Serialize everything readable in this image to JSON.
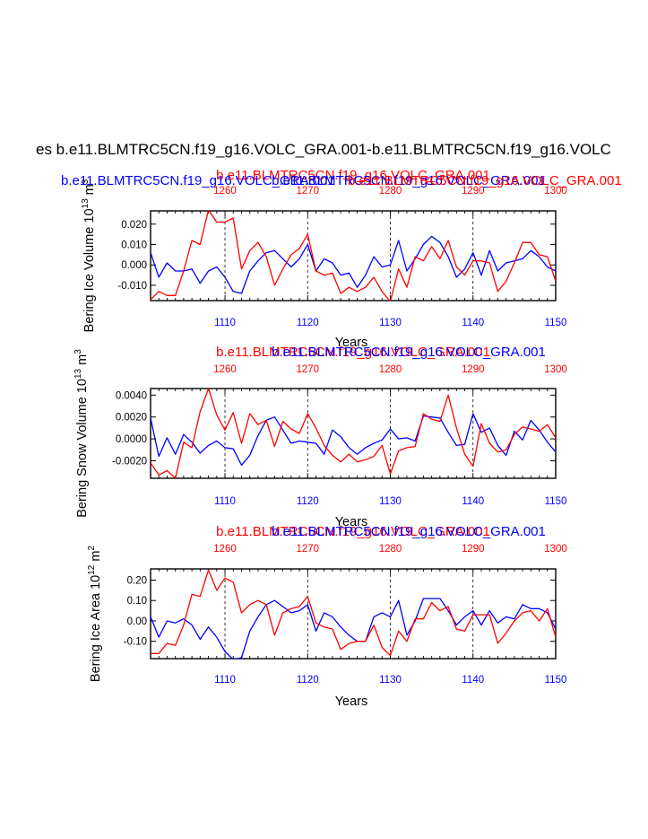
{
  "page_title": "es b.e11.BLMTRC5CN.f19_g16.VOLC_GRA.001-b.e11.BLMTRC5CN.f19_g16.VOLC",
  "series_names": {
    "blue": "b.e11.BLMTRC5CN.f19_g16.VOLC_GRA.001",
    "red": "b.e11.BLMTRC5CN.f19_g16.VOLC_GRA.001"
  },
  "colors": {
    "blue": "#0000ff",
    "red": "#ff0000",
    "axis": "#000000"
  },
  "chart_data": [
    {
      "type": "line",
      "title": "b.e11.BLMTRC5CN.f19_g16.VOLC_GRA.001 / b.e11.BLMTRC5CN.f19_g16.VOLC_GRA.001",
      "subtitle_blue": "b.e11.BLMTRC5CN.f19_g16.VOLC_GRA.001",
      "subtitle_red": "b.e11.BLMTRC5CN.f19_g16.VOLC_GRA.001",
      "ylabel": "Bering Ice Volume 10",
      "yexp": "13",
      "yunit": " m",
      "yunitexp": "3",
      "xlabel": "Years",
      "xlim": [
        1101,
        1150
      ],
      "ylim": [
        -0.0175,
        0.0265
      ],
      "yticks": [
        -0.01,
        0.0,
        0.01,
        0.02
      ],
      "yticklabels": [
        "-0.010",
        "0.000",
        "0.010",
        "0.020"
      ],
      "bottom_ticks": [
        1110,
        1120,
        1130,
        1140,
        1150
      ],
      "top_ticks": [
        1260,
        1270,
        1280,
        1290,
        1300
      ],
      "top_offset": 150,
      "series": [
        {
          "name": "blue",
          "x": [
            1101,
            1102,
            1103,
            1104,
            1105,
            1106,
            1107,
            1108,
            1109,
            1110,
            1111,
            1112,
            1113,
            1114,
            1115,
            1116,
            1117,
            1118,
            1119,
            1120,
            1121,
            1122,
            1123,
            1124,
            1125,
            1126,
            1127,
            1128,
            1129,
            1130,
            1131,
            1132,
            1133,
            1134,
            1135,
            1136,
            1137,
            1138,
            1139,
            1140,
            1141,
            1142,
            1143,
            1144,
            1145,
            1146,
            1147,
            1148,
            1149,
            1150
          ],
          "values": [
            0.006,
            -0.006,
            0.001,
            -0.003,
            -0.003,
            -0.002,
            -0.009,
            -0.003,
            -0.001,
            -0.006,
            -0.013,
            -0.014,
            -0.003,
            0.002,
            0.006,
            0.007,
            0.003,
            -0.001,
            0.003,
            0.01,
            -0.003,
            0.003,
            0.001,
            -0.005,
            -0.004,
            -0.011,
            -0.005,
            0.004,
            -0.001,
            0.0,
            0.012,
            -0.003,
            0.003,
            0.01,
            0.014,
            0.011,
            0.004,
            -0.006,
            -0.002,
            0.006,
            -0.005,
            0.007,
            -0.003,
            0.001,
            0.002,
            0.003,
            0.007,
            0.004,
            -0.001,
            -0.003
          ]
        },
        {
          "name": "red",
          "x": [
            1101,
            1102,
            1103,
            1104,
            1105,
            1106,
            1107,
            1108,
            1109,
            1110,
            1111,
            1112,
            1113,
            1114,
            1115,
            1116,
            1117,
            1118,
            1119,
            1120,
            1121,
            1122,
            1123,
            1124,
            1125,
            1126,
            1127,
            1128,
            1129,
            1130,
            1131,
            1132,
            1133,
            1134,
            1135,
            1136,
            1137,
            1138,
            1139,
            1140,
            1141,
            1142,
            1143,
            1144,
            1145,
            1146,
            1147,
            1148,
            1149,
            1150
          ],
          "values": [
            -0.017,
            -0.013,
            -0.015,
            -0.015,
            -0.003,
            0.012,
            0.01,
            0.027,
            0.021,
            0.021,
            0.023,
            -0.002,
            0.007,
            0.011,
            0.004,
            -0.01,
            -0.002,
            0.005,
            0.008,
            0.015,
            -0.003,
            -0.005,
            -0.004,
            -0.014,
            -0.011,
            -0.013,
            -0.011,
            -0.006,
            -0.013,
            -0.018,
            -0.002,
            -0.011,
            0.004,
            0.002,
            0.009,
            0.003,
            0.012,
            -0.001,
            -0.005,
            0.002,
            0.002,
            0.001,
            -0.013,
            -0.008,
            0.001,
            0.011,
            0.011,
            0.005,
            0.004,
            -0.008
          ]
        }
      ]
    },
    {
      "type": "line",
      "title": "b.e11.BLMTRC5CN.f19_g16.VOLC_GRA.001 / b.e11.BLMTRC5CN.f19_g16.VOLC_GRA.001",
      "subtitle_blue": "b.e11.BLMTRC5CN.f19_g16.VOLC_GRA.001",
      "subtitle_red": "b.e11.BLMTRC5CN.f19_g16.VOLC_GRA.001",
      "ylabel": "Bering Snow Volume 10",
      "yexp": "13",
      "yunit": " m",
      "yunitexp": "3",
      "xlabel": "Years",
      "xlim": [
        1101,
        1150
      ],
      "ylim": [
        -0.0036,
        0.0046
      ],
      "yticks": [
        -0.002,
        0.0,
        0.002,
        0.004
      ],
      "yticklabels": [
        "-0.0020",
        "0.0000",
        "0.0020",
        "0.0040"
      ],
      "bottom_ticks": [
        1110,
        1120,
        1130,
        1140,
        1150
      ],
      "top_ticks": [
        1260,
        1270,
        1280,
        1290,
        1300
      ],
      "top_offset": 150,
      "series": [
        {
          "name": "blue",
          "x": [
            1101,
            1102,
            1103,
            1104,
            1105,
            1106,
            1107,
            1108,
            1109,
            1110,
            1111,
            1112,
            1113,
            1114,
            1115,
            1116,
            1117,
            1118,
            1119,
            1120,
            1121,
            1122,
            1123,
            1124,
            1125,
            1126,
            1127,
            1128,
            1129,
            1130,
            1131,
            1132,
            1133,
            1134,
            1135,
            1136,
            1137,
            1138,
            1139,
            1140,
            1141,
            1142,
            1143,
            1144,
            1145,
            1146,
            1147,
            1148,
            1149,
            1150
          ],
          "values": [
            0.0019,
            -0.0016,
            0.0001,
            -0.0014,
            0.0004,
            -0.0003,
            -0.0013,
            -0.0006,
            -0.0002,
            -0.0008,
            -0.0009,
            -0.0024,
            -0.0015,
            0.0003,
            0.0017,
            0.002,
            0.0008,
            -0.0004,
            -0.0002,
            -0.0003,
            -0.0004,
            -0.0014,
            0.0008,
            0.0002,
            -0.0008,
            -0.0014,
            -0.0008,
            -0.0004,
            -0.0001,
            0.0009,
            0.0,
            0.0001,
            -0.0002,
            0.0021,
            0.002,
            0.0019,
            0.0006,
            -0.0006,
            -0.0005,
            0.0023,
            0.0006,
            0.001,
            -0.0006,
            -0.0015,
            0.0007,
            -0.0001,
            0.0017,
            0.0008,
            -0.0003,
            -0.0012
          ]
        },
        {
          "name": "red",
          "x": [
            1101,
            1102,
            1103,
            1104,
            1105,
            1106,
            1107,
            1108,
            1109,
            1110,
            1111,
            1112,
            1113,
            1114,
            1115,
            1116,
            1117,
            1118,
            1119,
            1120,
            1121,
            1122,
            1123,
            1124,
            1125,
            1126,
            1127,
            1128,
            1129,
            1130,
            1131,
            1132,
            1133,
            1134,
            1135,
            1136,
            1137,
            1138,
            1139,
            1140,
            1141,
            1142,
            1143,
            1144,
            1145,
            1146,
            1147,
            1148,
            1149,
            1150
          ],
          "values": [
            -0.0022,
            -0.0033,
            -0.0029,
            -0.0036,
            -0.0003,
            -0.0008,
            0.0025,
            0.0046,
            0.0022,
            0.0008,
            0.0024,
            -0.0004,
            0.0023,
            0.0013,
            0.0017,
            -0.0007,
            0.0016,
            0.0009,
            0.0005,
            0.0023,
            0.001,
            -0.0006,
            -0.0015,
            -0.0021,
            -0.0014,
            -0.0021,
            -0.0019,
            -0.0016,
            -0.0006,
            -0.0032,
            -0.0011,
            -0.0008,
            -0.0007,
            0.0023,
            0.0018,
            0.0016,
            0.004,
            0.001,
            -0.0014,
            -0.0025,
            0.0014,
            -0.0004,
            -0.0012,
            -0.001,
            0.0004,
            0.0011,
            0.0009,
            0.0007,
            0.0013,
            0.0001
          ]
        }
      ]
    },
    {
      "type": "line",
      "title": "b.e11.BLMTRC5CN.f19_g16.VOLC_GRA.001 / b.e11.BLMTRC5CN.f19_g16.VOLC_GRA.001",
      "subtitle_blue": "b.e11.BLMTRC5CN.f19_g16.VOLC_GRA.001",
      "subtitle_red": "b.e11.BLMTRC5CN.f19_g16.VOLC_GRA.001",
      "ylabel": "Bering Ice Area 10",
      "yexp": "12",
      "yunit": " m",
      "yunitexp": "2",
      "xlabel": "Years",
      "xlim": [
        1101,
        1150
      ],
      "ylim": [
        -0.185,
        0.255
      ],
      "yticks": [
        -0.1,
        0.0,
        0.1,
        0.2
      ],
      "yticklabels": [
        "-0.10",
        "0.00",
        "0.10",
        "0.20"
      ],
      "bottom_ticks": [
        1110,
        1120,
        1130,
        1140,
        1150
      ],
      "top_ticks": [
        1260,
        1270,
        1280,
        1290,
        1300
      ],
      "top_offset": 150,
      "series": [
        {
          "name": "blue",
          "x": [
            1101,
            1102,
            1103,
            1104,
            1105,
            1106,
            1107,
            1108,
            1109,
            1110,
            1111,
            1112,
            1113,
            1114,
            1115,
            1116,
            1117,
            1118,
            1119,
            1120,
            1121,
            1122,
            1123,
            1124,
            1125,
            1126,
            1127,
            1128,
            1129,
            1130,
            1131,
            1132,
            1133,
            1134,
            1135,
            1136,
            1137,
            1138,
            1139,
            1140,
            1141,
            1142,
            1143,
            1144,
            1145,
            1146,
            1147,
            1148,
            1149,
            1150
          ],
          "values": [
            0.02,
            -0.08,
            0.0,
            -0.01,
            0.01,
            -0.02,
            -0.09,
            -0.03,
            -0.08,
            -0.15,
            -0.19,
            -0.18,
            -0.05,
            0.02,
            0.08,
            0.1,
            0.07,
            0.04,
            0.05,
            0.08,
            -0.05,
            0.04,
            0.02,
            -0.03,
            -0.07,
            -0.1,
            -0.1,
            0.02,
            0.04,
            0.02,
            0.1,
            -0.07,
            0.0,
            0.11,
            0.11,
            0.11,
            0.05,
            -0.02,
            0.02,
            0.05,
            -0.02,
            0.05,
            -0.01,
            0.02,
            0.01,
            0.08,
            0.06,
            0.06,
            0.04,
            -0.04
          ]
        },
        {
          "name": "red",
          "x": [
            1101,
            1102,
            1103,
            1104,
            1105,
            1106,
            1107,
            1108,
            1109,
            1110,
            1111,
            1112,
            1113,
            1114,
            1115,
            1116,
            1117,
            1118,
            1119,
            1120,
            1121,
            1122,
            1123,
            1124,
            1125,
            1126,
            1127,
            1128,
            1129,
            1130,
            1131,
            1132,
            1133,
            1134,
            1135,
            1136,
            1137,
            1138,
            1139,
            1140,
            1141,
            1142,
            1143,
            1144,
            1145,
            1146,
            1147,
            1148,
            1149,
            1150
          ],
          "values": [
            -0.16,
            -0.16,
            -0.11,
            -0.12,
            -0.02,
            0.13,
            0.12,
            0.25,
            0.15,
            0.21,
            0.19,
            0.04,
            0.08,
            0.1,
            0.08,
            -0.07,
            0.04,
            0.06,
            0.07,
            0.12,
            -0.01,
            -0.03,
            -0.04,
            -0.14,
            -0.11,
            -0.1,
            -0.1,
            -0.02,
            -0.13,
            -0.17,
            -0.05,
            -0.1,
            0.01,
            0.01,
            0.09,
            0.05,
            0.07,
            -0.04,
            -0.05,
            0.03,
            0.03,
            0.03,
            -0.11,
            -0.06,
            0.0,
            0.04,
            0.05,
            0.0,
            0.06,
            -0.08
          ]
        }
      ]
    }
  ]
}
